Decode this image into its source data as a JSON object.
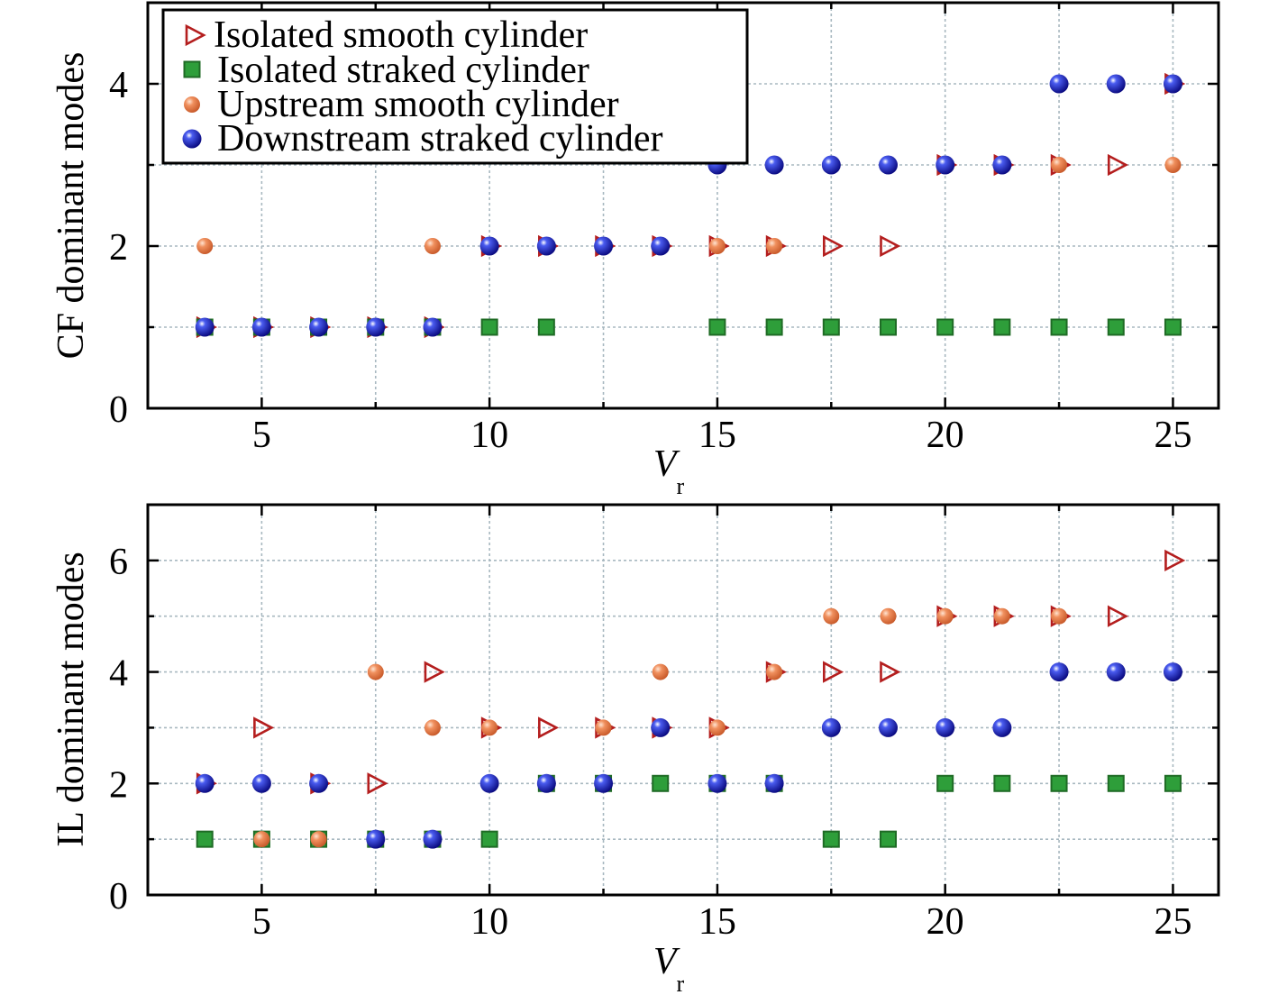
{
  "chart_data": [
    {
      "type": "scatter",
      "ylabel": "CF dominant modes",
      "xlabel": "V",
      "xlabel_sub": "r",
      "xlim": [
        2.5,
        26
      ],
      "ylim": [
        0,
        5
      ],
      "xticks": [
        5,
        10,
        15,
        20,
        25
      ],
      "yticks": [
        0,
        2,
        4
      ],
      "grid_x": [
        2.5,
        5,
        7.5,
        10,
        12.5,
        15,
        17.5,
        20,
        22.5,
        25
      ],
      "grid_y": [
        1,
        2,
        3,
        4
      ],
      "grid": true,
      "legend": {
        "position": "top-left",
        "entries": [
          "Isolated smooth cylinder",
          "Isolated straked cylinder",
          "Upstream smooth cylinder",
          "Downstream straked cylinder"
        ]
      },
      "series": [
        {
          "name": "Isolated smooth cylinder",
          "x": [
            3.75,
            5,
            6.25,
            7.5,
            8.75,
            10,
            11.25,
            12.5,
            13.75,
            15,
            16.25,
            17.5,
            18.75,
            20,
            21.25,
            22.5,
            23.75,
            25
          ],
          "y": [
            1,
            1,
            1,
            1,
            1,
            2,
            2,
            2,
            2,
            2,
            2,
            2,
            2,
            3,
            3,
            3,
            3,
            4
          ]
        },
        {
          "name": "Isolated straked cylinder",
          "x": [
            3.75,
            5,
            6.25,
            7.5,
            8.75,
            10,
            11.25,
            15,
            16.25,
            17.5,
            18.75,
            20,
            21.25,
            22.5,
            23.75,
            25
          ],
          "y": [
            1,
            1,
            1,
            1,
            1,
            1,
            1,
            1,
            1,
            1,
            1,
            1,
            1,
            1,
            1,
            1
          ]
        },
        {
          "name": "Upstream smooth cylinder",
          "x": [
            3.75,
            5,
            6.25,
            7.5,
            8.75,
            10,
            11.25,
            12.5,
            13.75,
            15,
            16.25,
            17.5,
            18.75,
            20,
            21.25,
            22.5,
            23.75,
            25
          ],
          "y": [
            2,
            1,
            1,
            1,
            2,
            2,
            2,
            2,
            2,
            2,
            2,
            3,
            3,
            3,
            3,
            3,
            4,
            3
          ]
        },
        {
          "name": "Downstream straked cylinder",
          "x": [
            3.75,
            5,
            6.25,
            7.5,
            8.75,
            10,
            11.25,
            12.5,
            13.75,
            15,
            16.25,
            17.5,
            18.75,
            20,
            21.25,
            22.5,
            23.75,
            25
          ],
          "y": [
            1,
            1,
            1,
            1,
            1,
            2,
            2,
            2,
            2,
            3,
            3,
            3,
            3,
            3,
            3,
            4,
            4,
            4
          ]
        }
      ]
    },
    {
      "type": "scatter",
      "ylabel": "IL dominant modes",
      "xlabel": "V",
      "xlabel_sub": "r",
      "xlim": [
        2.5,
        26
      ],
      "ylim": [
        0,
        7
      ],
      "xticks": [
        5,
        10,
        15,
        20,
        25
      ],
      "yticks": [
        0,
        2,
        4,
        6
      ],
      "grid_x": [
        2.5,
        5,
        7.5,
        10,
        12.5,
        15,
        17.5,
        20,
        22.5,
        25
      ],
      "grid_y": [
        1,
        2,
        3,
        4,
        5,
        6
      ],
      "grid": true,
      "series": [
        {
          "name": "Isolated smooth cylinder",
          "x": [
            3.75,
            5,
            6.25,
            7.5,
            8.75,
            10,
            11.25,
            12.5,
            13.75,
            15,
            16.25,
            17.5,
            18.75,
            20,
            21.25,
            22.5,
            23.75,
            25
          ],
          "y": [
            2,
            3,
            2,
            2,
            4,
            3,
            3,
            3,
            3,
            3,
            4,
            4,
            4,
            5,
            5,
            5,
            5,
            6
          ]
        },
        {
          "name": "Isolated straked cylinder",
          "x": [
            3.75,
            5,
            6.25,
            7.5,
            8.75,
            10,
            11.25,
            12.5,
            13.75,
            15,
            16.25,
            17.5,
            18.75,
            20,
            21.25,
            22.5,
            23.75,
            25
          ],
          "y": [
            1,
            1,
            1,
            1,
            1,
            1,
            2,
            2,
            2,
            2,
            2,
            1,
            1,
            2,
            2,
            2,
            2,
            2
          ]
        },
        {
          "name": "Upstream smooth cylinder",
          "x": [
            3.75,
            5,
            6.25,
            7.5,
            8.75,
            10,
            11.25,
            12.5,
            13.75,
            15,
            16.25,
            17.5,
            18.75,
            20,
            21.25,
            22.5,
            23.75,
            25
          ],
          "y": [
            2,
            1,
            1,
            4,
            3,
            3,
            2,
            3,
            4,
            3,
            4,
            5,
            5,
            5,
            5,
            5,
            4,
            4
          ]
        },
        {
          "name": "Downstream straked cylinder",
          "x": [
            3.75,
            5,
            6.25,
            7.5,
            8.75,
            10,
            11.25,
            12.5,
            13.75,
            15,
            16.25,
            17.5,
            18.75,
            20,
            21.25,
            22.5,
            23.75,
            25
          ],
          "y": [
            2,
            2,
            2,
            1,
            1,
            2,
            2,
            2,
            3,
            2,
            2,
            3,
            3,
            3,
            3,
            4,
            4,
            4
          ]
        }
      ]
    }
  ],
  "colors": {
    "isolated_smooth": "#b41e1e",
    "isolated_straked": "#2e9e3a",
    "isolated_straked_edge": "#1f6b25",
    "upstream_smooth": "#f08c5a",
    "upstream_smooth_dark": "#c85a2a",
    "downstream_straked": "#1515c8",
    "downstream_straked_dark": "#0a0a80",
    "grid": "#a8b8c0"
  },
  "icons": {
    "isolated_smooth": "triangle-right-open",
    "isolated_straked": "square-filled",
    "upstream_smooth": "circle-filled",
    "downstream_straked": "circle-filled"
  }
}
